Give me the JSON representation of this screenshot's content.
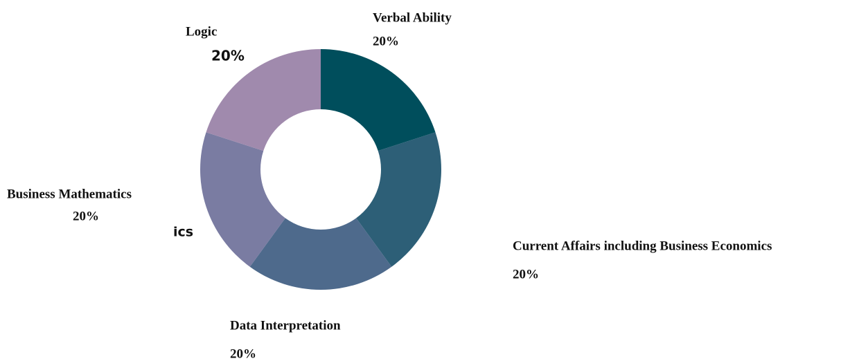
{
  "chart_data": {
    "type": "donut",
    "categories": [
      "Verbal Ability",
      "Current Affairs including Business Economics",
      "Data Interpretation",
      "Business Mathematics",
      "Logic"
    ],
    "values": [
      20,
      20,
      20,
      20,
      20
    ],
    "value_labels": [
      "20%",
      "20%",
      "20%",
      "20%",
      "20%"
    ],
    "colors": [
      "#004e5c",
      "#2d5f77",
      "#4e6a8c",
      "#7a7ca2",
      "#a08aad"
    ],
    "annotations": [
      "ics"
    ]
  }
}
